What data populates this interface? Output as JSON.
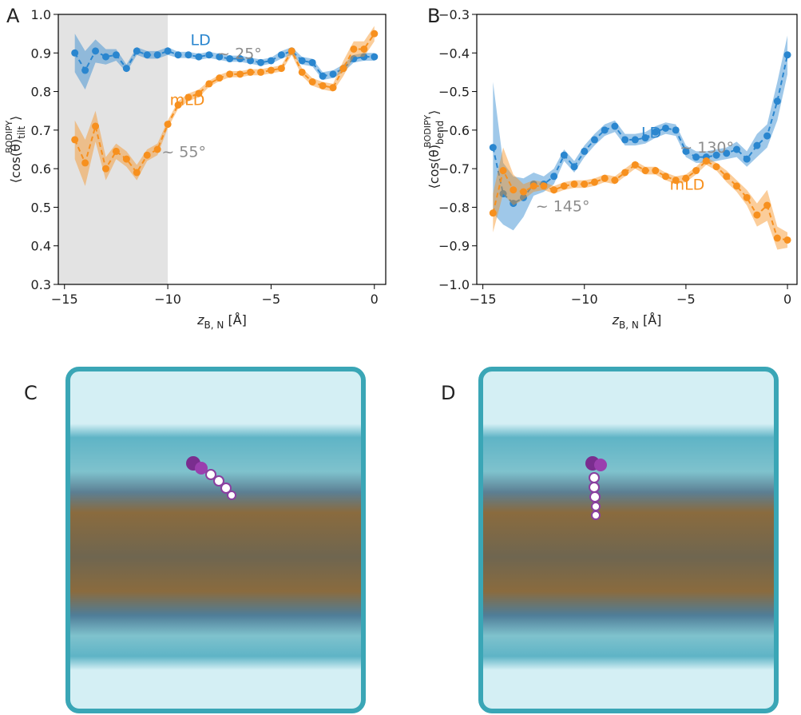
{
  "chart_data": [
    {
      "type": "line",
      "panel": "A",
      "ylabel": {
        "base": "⟨cos(θ)",
        "sub": "tilt",
        "sup": "BODIPY",
        "end": "⟩"
      },
      "xlabel": {
        "base": "z",
        "sub": "B, N",
        "end": " [Å]"
      },
      "xlim": [
        -15.3,
        0.55
      ],
      "ylim": [
        0.3,
        1.0
      ],
      "xticks": [
        {
          "value": -15,
          "label": "−15"
        },
        {
          "value": -10,
          "label": "−10"
        },
        {
          "value": -5,
          "label": "−5"
        },
        0
      ],
      "yticks": [
        0.3,
        0.4,
        0.5,
        0.6,
        0.7,
        0.8,
        0.9,
        {
          "value": 1.0,
          "label": "1.0"
        }
      ],
      "shaded_xrange": [
        -15.3,
        -10
      ],
      "shade_color": "#e3e3e3",
      "x": [
        -14.5,
        -14,
        -13.5,
        -13,
        -12.5,
        -12,
        -11.5,
        -11,
        -10.5,
        -10,
        -9.5,
        -9,
        -8.5,
        -8,
        -7.5,
        -7,
        -6.5,
        -6,
        -5.5,
        -5,
        -4.5,
        -4,
        -3.5,
        -3,
        -2.5,
        -2,
        -1.5,
        -1,
        -0.5,
        0
      ],
      "series": [
        {
          "name": "LD",
          "color": "#2a86cf",
          "values": [
            0.9,
            0.855,
            0.905,
            0.89,
            0.895,
            0.86,
            0.905,
            0.895,
            0.895,
            0.905,
            0.895,
            0.895,
            0.89,
            0.895,
            0.89,
            0.885,
            0.885,
            0.88,
            0.875,
            0.88,
            0.895,
            0.905,
            0.88,
            0.875,
            0.84,
            0.845,
            0.86,
            0.885,
            0.89,
            0.89
          ],
          "errors": [
            0.05,
            0.05,
            0.03,
            0.02,
            0.015,
            0.01,
            0.01,
            0.01,
            0.01,
            0.01,
            0.008,
            0.008,
            0.008,
            0.008,
            0.008,
            0.008,
            0.008,
            0.008,
            0.008,
            0.008,
            0.01,
            0.01,
            0.01,
            0.01,
            0.01,
            0.01,
            0.01,
            0.01,
            0.01,
            0.01
          ]
        },
        {
          "name": "mLD",
          "color": "#f7901e",
          "values": [
            0.675,
            0.615,
            0.71,
            0.6,
            0.645,
            0.625,
            0.59,
            0.635,
            0.65,
            0.715,
            0.765,
            0.785,
            0.795,
            0.82,
            0.835,
            0.845,
            0.845,
            0.85,
            0.85,
            0.855,
            0.86,
            0.905,
            0.85,
            0.825,
            0.815,
            0.81,
            0.86,
            0.91,
            0.91,
            0.95
          ],
          "errors": [
            0.05,
            0.06,
            0.04,
            0.03,
            0.02,
            0.02,
            0.02,
            0.015,
            0.015,
            0.01,
            0.01,
            0.01,
            0.01,
            0.008,
            0.008,
            0.008,
            0.008,
            0.008,
            0.008,
            0.008,
            0.008,
            0.01,
            0.01,
            0.01,
            0.01,
            0.01,
            0.02,
            0.02,
            0.02,
            0.02
          ]
        }
      ],
      "annotations": [
        {
          "text": "LD",
          "color": "#2a86cf"
        },
        {
          "text": "~ 25°",
          "color": "#8c8c8c"
        },
        {
          "text": "mLD",
          "color": "#f7901e"
        },
        {
          "text": "~ 55°",
          "color": "#8c8c8c"
        }
      ]
    },
    {
      "type": "line",
      "panel": "B",
      "ylabel": {
        "base": "⟨cos(θ)",
        "sub": "bend",
        "sup": "BODIPY",
        "end": "⟩"
      },
      "xlabel": {
        "base": "z",
        "sub": "B, N",
        "end": " [Å]"
      },
      "xlim": [
        -15.3,
        0.47
      ],
      "ylim": [
        -1.0,
        -0.3
      ],
      "xticks": [
        {
          "value": -15,
          "label": "−15"
        },
        {
          "value": -10,
          "label": "−10"
        },
        {
          "value": -5,
          "label": "−5"
        },
        0
      ],
      "yticks": [
        {
          "value": -1.0,
          "label": "−1.0"
        },
        {
          "value": -0.9,
          "label": "−0.9"
        },
        {
          "value": -0.8,
          "label": "−0.8"
        },
        {
          "value": -0.7,
          "label": "−0.7"
        },
        {
          "value": -0.6,
          "label": "−0.6"
        },
        {
          "value": -0.5,
          "label": "−0.5"
        },
        {
          "value": -0.4,
          "label": "−0.4"
        },
        {
          "value": -0.3,
          "label": "−0.3"
        }
      ],
      "x": [
        -14.5,
        -14,
        -13.5,
        -13,
        -12.5,
        -12,
        -11.5,
        -11,
        -10.5,
        -10,
        -9.5,
        -9,
        -8.5,
        -8,
        -7.5,
        -7,
        -6.5,
        -6,
        -5.5,
        -5,
        -4.5,
        -4,
        -3.5,
        -3,
        -2.5,
        -2,
        -1.5,
        -1,
        -0.5,
        0
      ],
      "series": [
        {
          "name": "LD",
          "color": "#2a86cf",
          "values": [
            -0.645,
            -0.765,
            -0.79,
            -0.775,
            -0.74,
            -0.74,
            -0.72,
            -0.665,
            -0.695,
            -0.655,
            -0.625,
            -0.6,
            -0.59,
            -0.625,
            -0.625,
            -0.62,
            -0.605,
            -0.595,
            -0.6,
            -0.655,
            -0.67,
            -0.67,
            -0.665,
            -0.66,
            -0.65,
            -0.675,
            -0.64,
            -0.615,
            -0.525,
            -0.405
          ],
          "errors": [
            0.17,
            0.08,
            0.07,
            0.05,
            0.03,
            0.02,
            0.02,
            0.015,
            0.015,
            0.015,
            0.015,
            0.015,
            0.015,
            0.015,
            0.015,
            0.015,
            0.015,
            0.015,
            0.015,
            0.015,
            0.015,
            0.015,
            0.015,
            0.015,
            0.02,
            0.02,
            0.03,
            0.03,
            0.05,
            0.05
          ]
        },
        {
          "name": "mLD",
          "color": "#f7901e",
          "values": [
            -0.815,
            -0.705,
            -0.755,
            -0.76,
            -0.745,
            -0.745,
            -0.755,
            -0.745,
            -0.74,
            -0.74,
            -0.735,
            -0.725,
            -0.73,
            -0.71,
            -0.69,
            -0.705,
            -0.705,
            -0.72,
            -0.73,
            -0.725,
            -0.705,
            -0.68,
            -0.695,
            -0.72,
            -0.745,
            -0.775,
            -0.82,
            -0.795,
            -0.88,
            -0.885
          ],
          "errors": [
            0.05,
            0.06,
            0.04,
            0.02,
            0.015,
            0.01,
            0.01,
            0.01,
            0.01,
            0.01,
            0.01,
            0.01,
            0.01,
            0.01,
            0.01,
            0.01,
            0.01,
            0.01,
            0.01,
            0.01,
            0.01,
            0.01,
            0.01,
            0.015,
            0.015,
            0.02,
            0.03,
            0.04,
            0.03,
            0.02
          ]
        }
      ],
      "annotations": [
        {
          "text": "LD",
          "color": "#2a86cf"
        },
        {
          "text": "~ 130°",
          "color": "#8c8c8c"
        },
        {
          "text": "mLD",
          "color": "#f7901e"
        },
        {
          "text": "~ 145°",
          "color": "#8c8c8c"
        }
      ]
    }
  ],
  "images": [
    {
      "panel": "C"
    },
    {
      "panel": "D"
    }
  ]
}
